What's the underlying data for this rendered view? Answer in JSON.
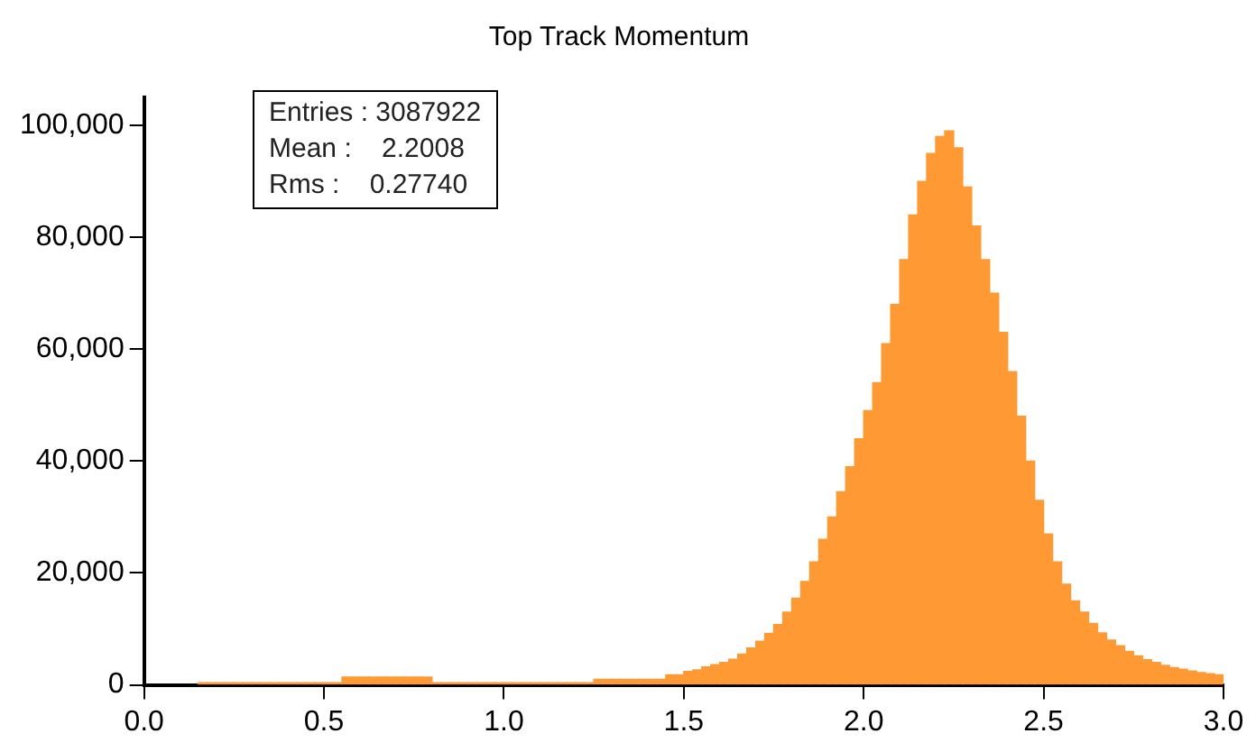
{
  "chart_data": {
    "type": "histogram",
    "title": "Top Track Momentum",
    "bins": [
      0.15,
      0.175,
      0.2,
      0.225,
      0.25,
      0.275,
      0.3,
      0.325,
      0.35,
      0.375,
      0.4,
      0.425,
      0.45,
      0.475,
      0.5,
      0.525,
      0.55,
      0.575,
      0.6,
      0.625,
      0.65,
      0.675,
      0.7,
      0.725,
      0.75,
      0.775,
      0.8,
      0.825,
      0.85,
      0.875,
      0.9,
      0.925,
      0.95,
      0.975,
      1.0,
      1.025,
      1.05,
      1.075,
      1.1,
      1.125,
      1.15,
      1.175,
      1.2,
      1.225,
      1.25,
      1.275,
      1.3,
      1.325,
      1.35,
      1.375,
      1.4,
      1.425,
      1.45,
      1.475,
      1.5,
      1.525,
      1.55,
      1.575,
      1.6,
      1.625,
      1.65,
      1.675,
      1.7,
      1.725,
      1.75,
      1.775,
      1.8,
      1.825,
      1.85,
      1.875,
      1.9,
      1.925,
      1.95,
      1.975,
      2.0,
      2.025,
      2.05,
      2.075,
      2.1,
      2.125,
      2.15,
      2.175,
      2.2,
      2.225,
      2.25,
      2.275,
      2.3,
      2.325,
      2.35,
      2.375,
      2.4,
      2.425,
      2.45,
      2.475,
      2.5,
      2.525,
      2.55,
      2.575,
      2.6,
      2.625,
      2.65,
      2.675,
      2.7,
      2.725,
      2.75,
      2.775,
      2.8,
      2.825,
      2.85,
      2.875,
      2.9,
      2.925,
      2.95,
      2.975,
      3.0
    ],
    "values": [
      400,
      400,
      400,
      400,
      400,
      400,
      400,
      400,
      400,
      400,
      400,
      400,
      400,
      400,
      400,
      400,
      1400,
      1400,
      1400,
      1400,
      1400,
      1400,
      1400,
      1400,
      1400,
      1400,
      400,
      400,
      400,
      400,
      400,
      400,
      400,
      400,
      400,
      400,
      400,
      400,
      400,
      400,
      400,
      400,
      400,
      400,
      1000,
      1000,
      1000,
      1000,
      1000,
      1000,
      1000,
      1000,
      1800,
      1800,
      2400,
      2700,
      3200,
      3600,
      4000,
      4600,
      5500,
      6600,
      7800,
      9200,
      10800,
      13000,
      15500,
      18500,
      22000,
      26000,
      30000,
      34500,
      39000,
      44000,
      49000,
      54000,
      61000,
      68000,
      76000,
      84000,
      90000,
      95000,
      98000,
      99000,
      96000,
      89000,
      82000,
      76000,
      70000,
      63000,
      56000,
      48000,
      40000,
      33000,
      27000,
      22000,
      18000,
      15000,
      13000,
      11000,
      9300,
      8000,
      7000,
      6000,
      5200,
      4500,
      4000,
      3500,
      3100,
      2800,
      2500,
      2200,
      2000,
      1800
    ],
    "color": "#ff9933",
    "xlim": [
      0,
      3
    ],
    "xticks": [
      {
        "value": 0,
        "label": "0.0"
      },
      {
        "value": 0.5,
        "label": "0.5"
      },
      {
        "value": 1,
        "label": "1.0"
      },
      {
        "value": 1.5,
        "label": "1.5"
      },
      {
        "value": 2,
        "label": "2.0"
      },
      {
        "value": 2.5,
        "label": "2.5"
      },
      {
        "value": 3,
        "label": "3.0"
      }
    ],
    "ylim": [
      0,
      105000
    ],
    "yticks": [
      {
        "value": 0,
        "label": "0"
      },
      {
        "value": 20000,
        "label": "20,000"
      },
      {
        "value": 40000,
        "label": "40,000"
      },
      {
        "value": 60000,
        "label": "60,000"
      },
      {
        "value": 80000,
        "label": "80,000"
      },
      {
        "value": 100000,
        "label": "100,000"
      }
    ],
    "annotations": [
      "Entries : 3087922",
      "Mean :    2.2008",
      "Rms :    0.27740"
    ],
    "grid": false,
    "legend": false
  }
}
